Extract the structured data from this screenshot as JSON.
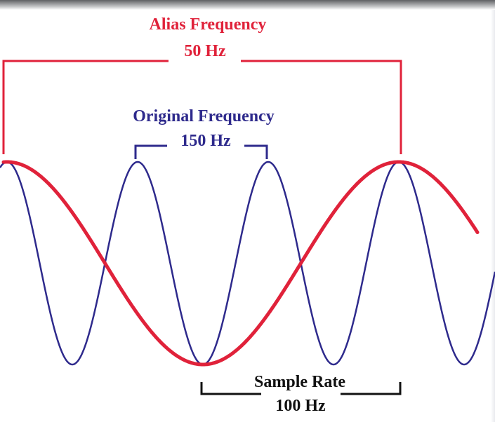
{
  "alias": {
    "title": "Alias Frequency",
    "value": "50 Hz",
    "color": "#e0223a"
  },
  "original": {
    "title": "Original Frequency",
    "value": "150 Hz",
    "color": "#2e2a8c"
  },
  "sample": {
    "title": "Sample Rate",
    "value": "100 Hz",
    "color": "#111111"
  }
}
